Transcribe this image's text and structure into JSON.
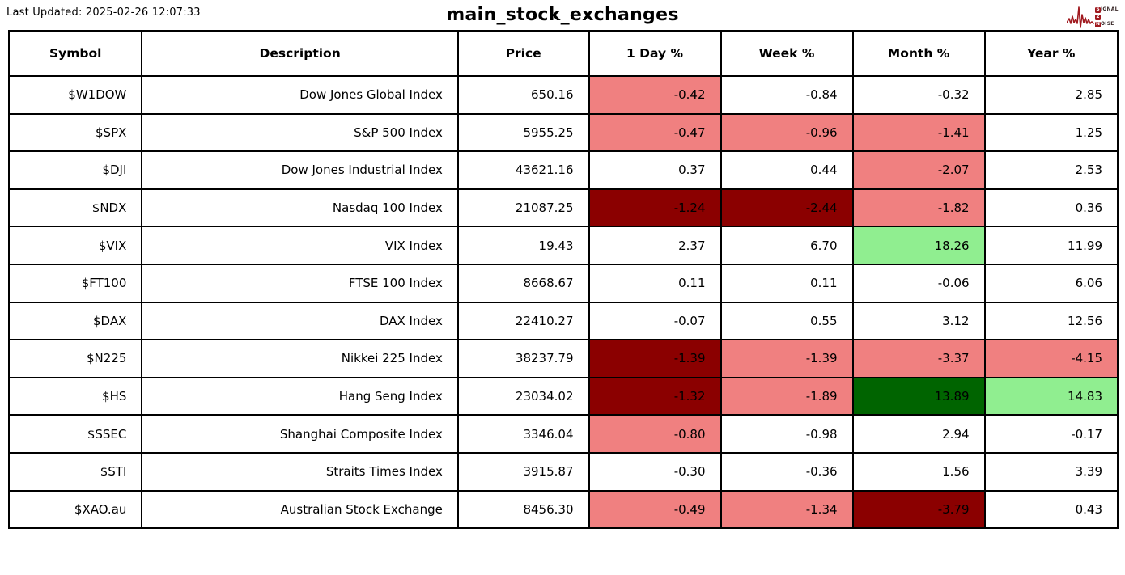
{
  "page": {
    "last_updated": "Last Updated: 2025-02-26 12:07:33",
    "title": "main_stock_exchanges"
  },
  "logo": {
    "color": "#A0191F",
    "lines": [
      {
        "badge": "S",
        "rest": "IGNAL"
      },
      {
        "badge": "2",
        "rest": ""
      },
      {
        "badge": "N",
        "rest": "OISE"
      }
    ]
  },
  "colors": {
    "lightred": "#F08080",
    "darkred": "#8B0000",
    "lightgreen": "#90EE90",
    "darkgreen": "#006400",
    "border": "#000000",
    "background": "#FFFFFF"
  },
  "chart_data": {
    "type": "table",
    "title": "main_stock_exchanges",
    "last_updated": "2025-02-26 12:07:33",
    "columns": [
      "Symbol",
      "Description",
      "Price",
      "1 Day %",
      "Week %",
      "Month %",
      "Year %"
    ],
    "rows": [
      {
        "cells": [
          {
            "v": "$W1DOW"
          },
          {
            "v": "Dow Jones Global Index"
          },
          {
            "v": "650.16"
          },
          {
            "v": "-0.42",
            "bg": "lightred"
          },
          {
            "v": "-0.84"
          },
          {
            "v": "-0.32"
          },
          {
            "v": "2.85"
          }
        ]
      },
      {
        "cells": [
          {
            "v": "$SPX"
          },
          {
            "v": "S&P 500 Index"
          },
          {
            "v": "5955.25"
          },
          {
            "v": "-0.47",
            "bg": "lightred"
          },
          {
            "v": "-0.96",
            "bg": "lightred"
          },
          {
            "v": "-1.41",
            "bg": "lightred"
          },
          {
            "v": "1.25"
          }
        ]
      },
      {
        "cells": [
          {
            "v": "$DJI"
          },
          {
            "v": "Dow Jones Industrial Index"
          },
          {
            "v": "43621.16"
          },
          {
            "v": "0.37"
          },
          {
            "v": "0.44"
          },
          {
            "v": "-2.07",
            "bg": "lightred"
          },
          {
            "v": "2.53"
          }
        ]
      },
      {
        "cells": [
          {
            "v": "$NDX"
          },
          {
            "v": "Nasdaq 100 Index"
          },
          {
            "v": "21087.25"
          },
          {
            "v": "-1.24",
            "bg": "darkred"
          },
          {
            "v": "-2.44",
            "bg": "darkred"
          },
          {
            "v": "-1.82",
            "bg": "lightred"
          },
          {
            "v": "0.36"
          }
        ]
      },
      {
        "cells": [
          {
            "v": "$VIX"
          },
          {
            "v": "VIX Index"
          },
          {
            "v": "19.43"
          },
          {
            "v": "2.37"
          },
          {
            "v": "6.70"
          },
          {
            "v": "18.26",
            "bg": "lightgreen"
          },
          {
            "v": "11.99"
          }
        ]
      },
      {
        "cells": [
          {
            "v": "$FT100"
          },
          {
            "v": "FTSE 100 Index"
          },
          {
            "v": "8668.67"
          },
          {
            "v": "0.11"
          },
          {
            "v": "0.11"
          },
          {
            "v": "-0.06"
          },
          {
            "v": "6.06"
          }
        ]
      },
      {
        "cells": [
          {
            "v": "$DAX"
          },
          {
            "v": "DAX Index"
          },
          {
            "v": "22410.27"
          },
          {
            "v": "-0.07"
          },
          {
            "v": "0.55"
          },
          {
            "v": "3.12"
          },
          {
            "v": "12.56"
          }
        ]
      },
      {
        "cells": [
          {
            "v": "$N225"
          },
          {
            "v": "Nikkei 225 Index"
          },
          {
            "v": "38237.79"
          },
          {
            "v": "-1.39",
            "bg": "darkred"
          },
          {
            "v": "-1.39",
            "bg": "lightred"
          },
          {
            "v": "-3.37",
            "bg": "lightred"
          },
          {
            "v": "-4.15",
            "bg": "lightred"
          }
        ]
      },
      {
        "cells": [
          {
            "v": "$HS"
          },
          {
            "v": "Hang Seng Index"
          },
          {
            "v": "23034.02"
          },
          {
            "v": "-1.32",
            "bg": "darkred"
          },
          {
            "v": "-1.89",
            "bg": "lightred"
          },
          {
            "v": "13.89",
            "bg": "darkgreen"
          },
          {
            "v": "14.83",
            "bg": "lightgreen"
          }
        ]
      },
      {
        "cells": [
          {
            "v": "$SSEC"
          },
          {
            "v": "Shanghai Composite Index"
          },
          {
            "v": "3346.04"
          },
          {
            "v": "-0.80",
            "bg": "lightred"
          },
          {
            "v": "-0.98"
          },
          {
            "v": "2.94"
          },
          {
            "v": "-0.17"
          }
        ]
      },
      {
        "cells": [
          {
            "v": "$STI"
          },
          {
            "v": "Straits Times Index"
          },
          {
            "v": "3915.87"
          },
          {
            "v": "-0.30"
          },
          {
            "v": "-0.36"
          },
          {
            "v": "1.56"
          },
          {
            "v": "3.39"
          }
        ]
      },
      {
        "cells": [
          {
            "v": "$XAO.au"
          },
          {
            "v": "Australian Stock Exchange"
          },
          {
            "v": "8456.30"
          },
          {
            "v": "-0.49",
            "bg": "lightred"
          },
          {
            "v": "-1.34",
            "bg": "lightred"
          },
          {
            "v": "-3.79",
            "bg": "darkred"
          },
          {
            "v": "0.43"
          }
        ]
      }
    ]
  }
}
